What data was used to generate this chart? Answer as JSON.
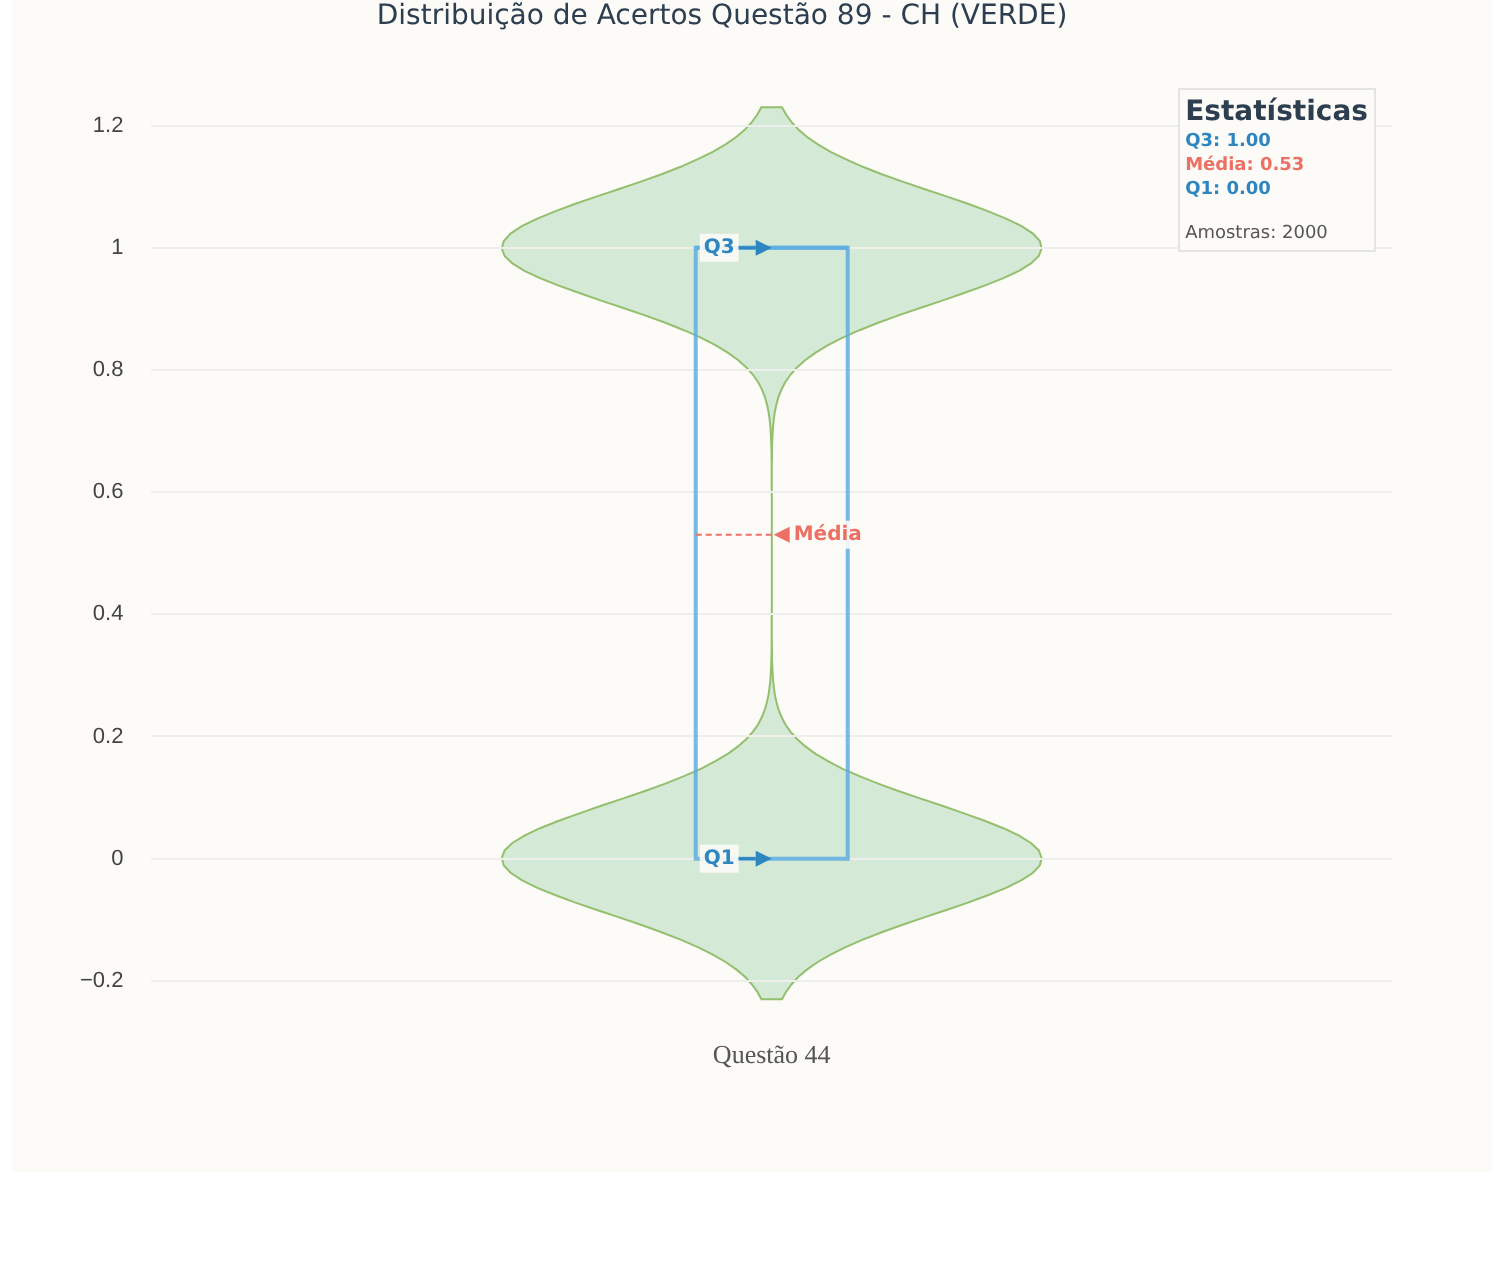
{
  "chart_data": {
    "type": "box",
    "title": "Distribuição de Acertos Questão 89 - CH (VERDE)",
    "categories": [
      "Questão 44"
    ],
    "series": [
      {
        "color": "#5dade2",
        "boxes": [
          {
            "low": 0,
            "q1": 0,
            "median": 1,
            "q3": 1,
            "high": 1,
            "mean": 0.53
          }
        ]
      }
    ],
    "ylim": [
      -0.2,
      1.2
    ],
    "yticks": [
      -0.2,
      0,
      0.2,
      0.4,
      0.6,
      0.8,
      1,
      1.2
    ],
    "grid": "y",
    "legend": false,
    "annotations": [
      {
        "text": "Q3",
        "x": "Questão 44",
        "y": 1
      },
      {
        "text": "Q1",
        "x": "Questão 44",
        "y": 0
      },
      "Média",
      "Estatísticas",
      "Q3: 1.00",
      "Média: 0.53",
      "Q1: 0.00",
      "Amostras: 2000"
    ]
  }
}
